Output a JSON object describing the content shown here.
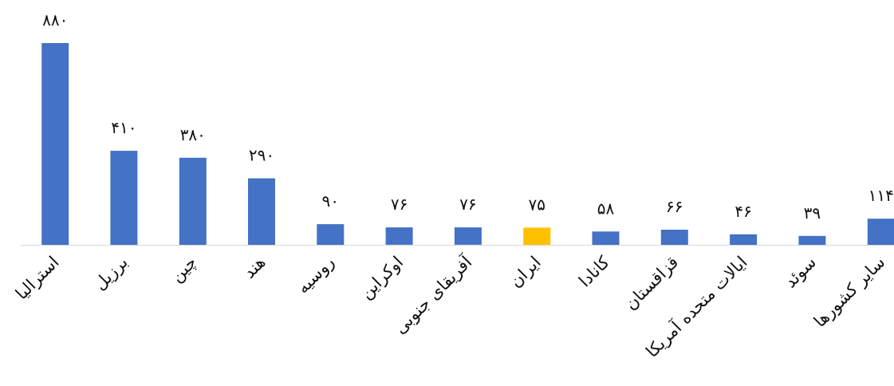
{
  "chart_data": {
    "type": "bar",
    "title": "",
    "xlabel": "",
    "ylabel": "",
    "ylim": [
      0,
      1000
    ],
    "grid": false,
    "legend": "none",
    "categories": [
      "استرالیا",
      "برزیل",
      "چین",
      "هند",
      "روسیه",
      "اوکراین",
      "آفریقای جنوبی",
      "ایران",
      "کانادا",
      "قزاقستان",
      "ایالات متحده آمریکا",
      "سوئد",
      "سایر کشورها"
    ],
    "values": [
      880,
      410,
      380,
      290,
      90,
      76,
      76,
      75,
      58,
      66,
      46,
      39,
      114
    ],
    "value_labels": [
      "۸۸۰",
      "۴۱۰",
      "۳۸۰",
      "۲۹۰",
      "۹۰",
      "۷۶",
      "۷۶",
      "۷۵",
      "۵۸",
      "۶۶",
      "۴۶",
      "۳۹",
      "۱۱۴"
    ],
    "colors": {
      "default": "#4472C4",
      "highlight": "#FFC000",
      "axis": "#D9D9D9"
    },
    "highlight_index": 7
  }
}
